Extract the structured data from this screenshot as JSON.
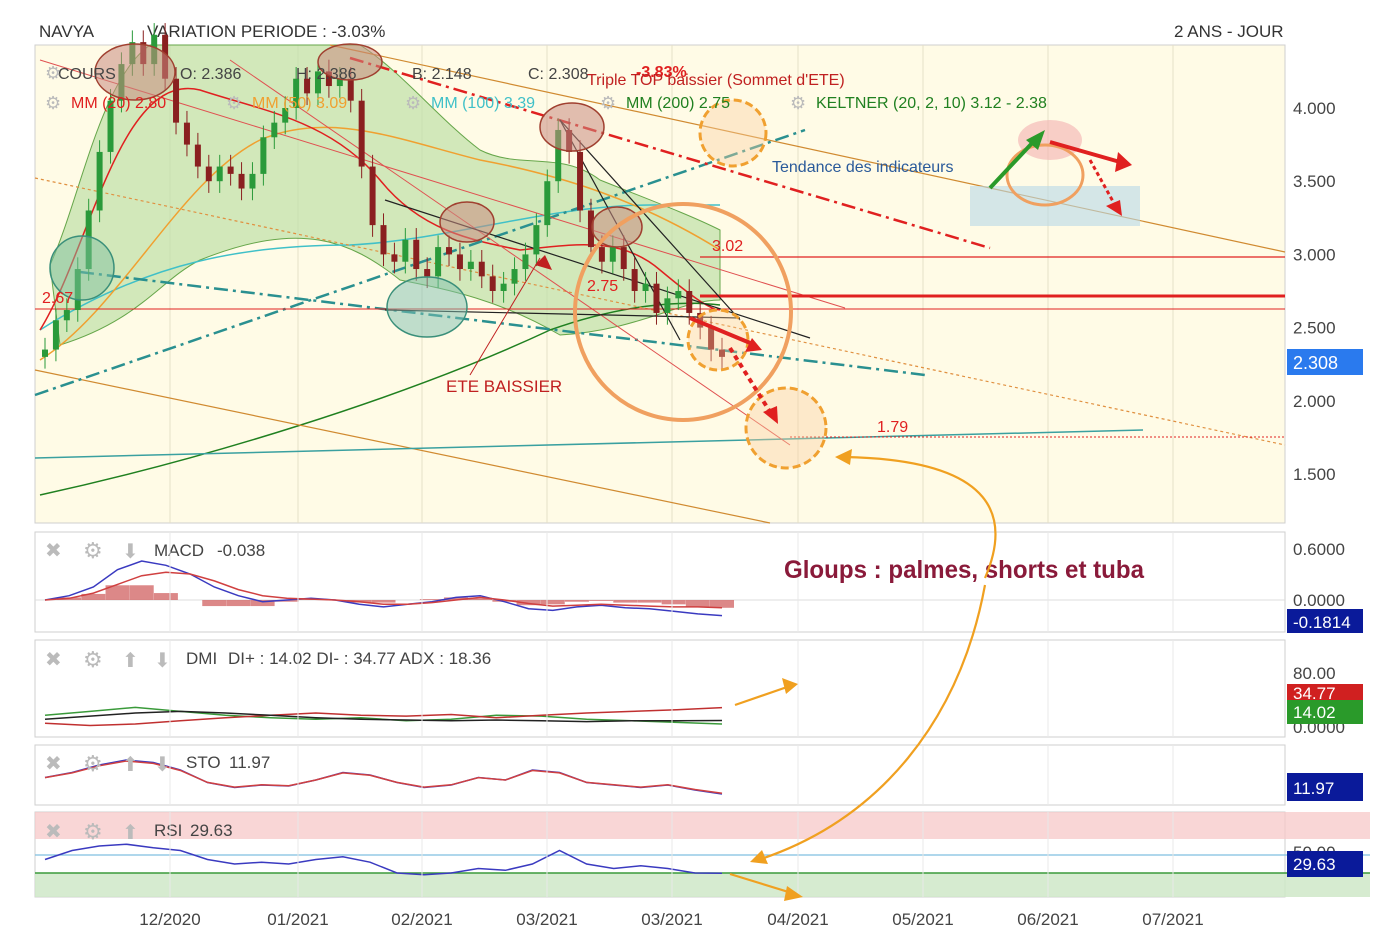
{
  "header": {
    "symbol": "NAVYA",
    "variation": "VARIATION PERIODE : -3.03%",
    "period": "2 ANS - JOUR"
  },
  "ohlc": {
    "cours": "COURS",
    "open": "O: 2.386",
    "high": "H: 2.386",
    "low": "B: 2.148",
    "close": "C: 2.308",
    "change": "-3.83%"
  },
  "indicators": [
    {
      "label": "MM (20)  2.80",
      "color": "#e02020"
    },
    {
      "label": "MM (50)  3.09",
      "color": "#f0a030"
    },
    {
      "label": "MM (100)  3.39",
      "color": "#40c0c8"
    },
    {
      "label": "MM (200)  2.75",
      "color": "#208020"
    },
    {
      "label": "KELTNER (20, 2, 10)  3.12 - 2.38",
      "color": "#208020"
    }
  ],
  "annotations": {
    "triple_top": "Triple TOP baissier (Sommet d'ETE)",
    "trend_indicators": "Tendance des indicateurs",
    "ete_baissier": "ETE BAISSIER",
    "level_302": "3.02",
    "level_275": "2.75",
    "level_267": "2.67",
    "level_179": "1.79",
    "comment": "Gloups : palmes, shorts et tuba"
  },
  "panels": {
    "macd": {
      "name": "MACD",
      "value": "-0.038",
      "axis": [
        "0.6000",
        "0.0000"
      ],
      "badge": "-0.1814"
    },
    "dmi": {
      "name": "DMI",
      "value": "DI+ : 14.02 DI- : 34.77 ADX : 18.36",
      "axis": [
        "80.00",
        "0.0000"
      ],
      "badge_red": "34.77",
      "badge_green": "14.02"
    },
    "sto": {
      "name": "STO",
      "value": "11.97",
      "badge": "11.97"
    },
    "rsi": {
      "name": "RSI",
      "value": "29.63",
      "axis": [
        "50.00"
      ],
      "badge": "29.63"
    }
  },
  "chart_data": {
    "type": "candlestick",
    "x_ticks": [
      "12/2020",
      "01/2021",
      "02/2021",
      "03/2021",
      "03/2021",
      "04/2021",
      "05/2021",
      "06/2021",
      "07/2021"
    ],
    "y_ticks": [
      "4.000",
      "3.500",
      "3.000",
      "2.500",
      "2.000",
      "1.500"
    ],
    "ylim": [
      1.2,
      4.5
    ],
    "last_price": "2.308",
    "close_series": [
      2.35,
      2.55,
      2.62,
      2.9,
      3.3,
      3.7,
      4.05,
      4.3,
      4.45,
      4.3,
      4.5,
      4.2,
      3.9,
      3.75,
      3.6,
      3.5,
      3.6,
      3.55,
      3.45,
      3.55,
      3.8,
      3.9,
      4.0,
      4.2,
      4.1,
      4.25,
      4.15,
      4.2,
      4.05,
      3.6,
      3.2,
      3.0,
      2.95,
      3.1,
      2.9,
      2.85,
      3.05,
      3.0,
      2.9,
      2.95,
      2.85,
      2.75,
      2.8,
      2.9,
      3.0,
      3.2,
      3.5,
      3.85,
      3.7,
      3.3,
      3.05,
      2.95,
      3.05,
      2.9,
      2.75,
      2.8,
      2.6,
      2.7,
      2.75,
      2.6,
      2.5,
      2.35,
      2.3
    ],
    "macd_series": [
      0.0,
      0.05,
      0.15,
      0.35,
      0.45,
      0.4,
      0.3,
      0.15,
      0.05,
      -0.02,
      0.0,
      0.02,
      0.0,
      -0.05,
      -0.08,
      -0.05,
      -0.02,
      0.03,
      0.05,
      -0.02,
      -0.1,
      -0.12,
      -0.08,
      -0.06,
      -0.09,
      -0.1,
      -0.13,
      -0.16,
      -0.18
    ],
    "signal_series": [
      0.0,
      0.02,
      0.08,
      0.18,
      0.28,
      0.32,
      0.3,
      0.22,
      0.12,
      0.05,
      0.02,
      0.01,
      0.0,
      -0.02,
      -0.05,
      -0.05,
      -0.03,
      0.0,
      0.03,
      0.0,
      -0.04,
      -0.07,
      -0.06,
      -0.05,
      -0.06,
      -0.07,
      -0.08,
      -0.08,
      -0.09
    ],
    "sto_series": [
      45,
      55,
      70,
      80,
      75,
      60,
      35,
      25,
      30,
      28,
      40,
      55,
      50,
      35,
      25,
      30,
      45,
      40,
      60,
      55,
      35,
      30,
      25,
      30,
      20,
      12
    ],
    "rsi_series": [
      45,
      55,
      60,
      62,
      58,
      55,
      45,
      40,
      42,
      40,
      45,
      48,
      42,
      30,
      28,
      30,
      35,
      33,
      40,
      55,
      40,
      35,
      38,
      35,
      30,
      29.63
    ],
    "dmi_plus": [
      25,
      30,
      35,
      30,
      25,
      22,
      20,
      22,
      18,
      20,
      25,
      24,
      20,
      18,
      16,
      14
    ],
    "dmi_minus": [
      15,
      12,
      14,
      18,
      22,
      25,
      28,
      25,
      24,
      26,
      22,
      25,
      28,
      30,
      32,
      34.77
    ],
    "adx": [
      20,
      24,
      28,
      30,
      28,
      25,
      22,
      20,
      19,
      18,
      19,
      18,
      17,
      18,
      18,
      18.36
    ]
  }
}
